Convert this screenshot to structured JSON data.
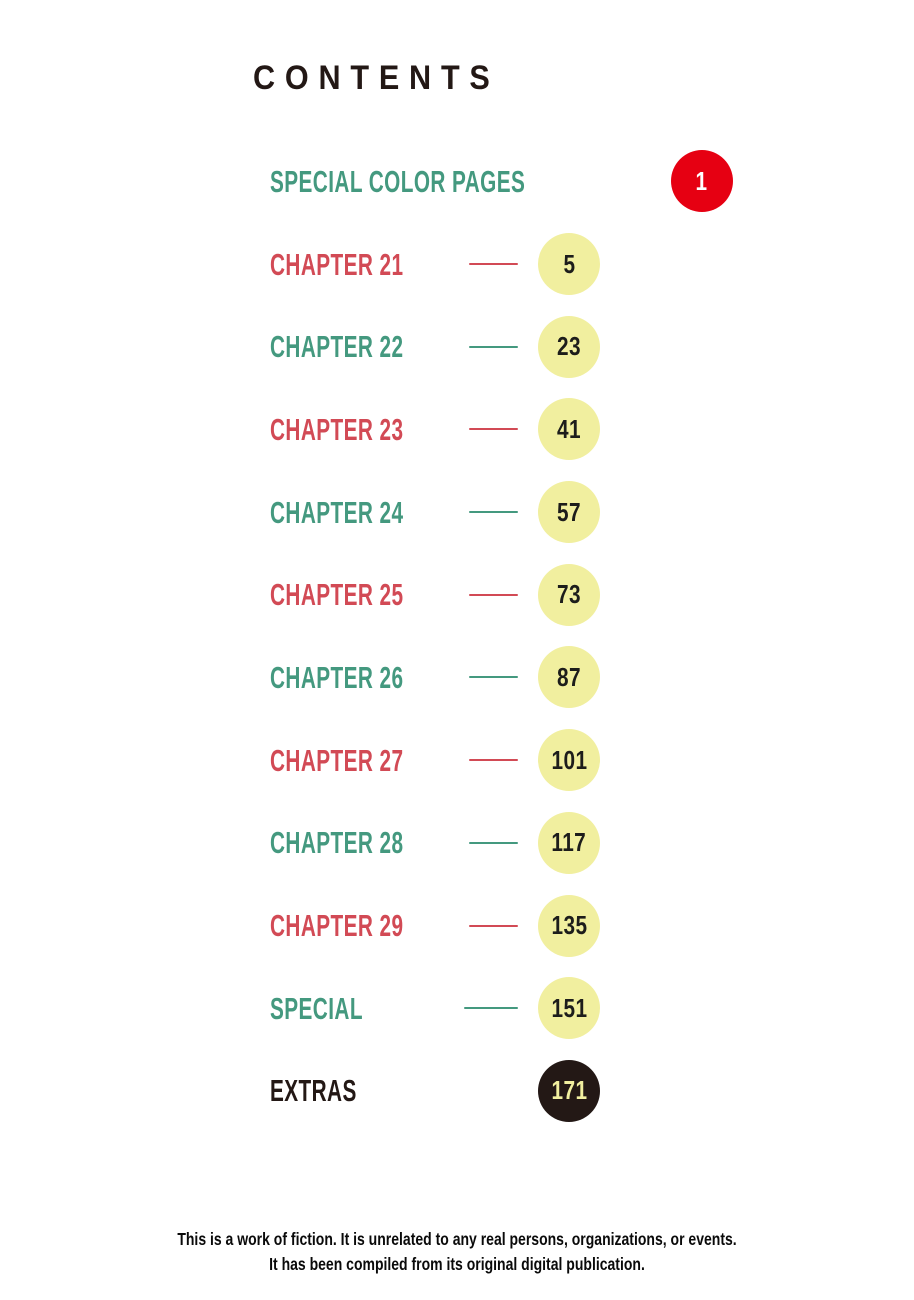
{
  "page": {
    "title": "CONTENTS",
    "footer_lines": [
      "This is a work of fiction. It is unrelated to any real persons, organizations, or events.",
      "It has been compiled from its original digital publication."
    ]
  },
  "toc": {
    "items": [
      {
        "label": "SPECIAL COLOR PAGES",
        "page": "1",
        "label_color": "teal",
        "circle": "red",
        "line": "none"
      },
      {
        "label": "CHAPTER 21",
        "page": "5",
        "label_color": "red",
        "circle": "yellow",
        "line": "full"
      },
      {
        "label": "CHAPTER 22",
        "page": "23",
        "label_color": "teal",
        "circle": "yellow",
        "line": "full"
      },
      {
        "label": "CHAPTER 23",
        "page": "41",
        "label_color": "red",
        "circle": "yellow",
        "line": "full"
      },
      {
        "label": "CHAPTER 24",
        "page": "57",
        "label_color": "teal",
        "circle": "yellow",
        "line": "full"
      },
      {
        "label": "CHAPTER 25",
        "page": "73",
        "label_color": "red",
        "circle": "yellow",
        "line": "full"
      },
      {
        "label": "CHAPTER 26",
        "page": "87",
        "label_color": "teal",
        "circle": "yellow",
        "line": "full"
      },
      {
        "label": "CHAPTER 27",
        "page": "101",
        "label_color": "red",
        "circle": "yellow",
        "line": "full"
      },
      {
        "label": "CHAPTER 28",
        "page": "117",
        "label_color": "teal",
        "circle": "yellow",
        "line": "full"
      },
      {
        "label": "CHAPTER 29",
        "page": "135",
        "label_color": "red",
        "circle": "yellow",
        "line": "full"
      },
      {
        "label": "SPECIAL",
        "page": "151",
        "label_color": "teal",
        "circle": "yellow",
        "line": "short"
      },
      {
        "label": "EXTRAS",
        "page": "171",
        "label_color": "black",
        "circle": "dark",
        "line": "none"
      }
    ]
  },
  "colors": {
    "background": "#ffffff",
    "ink": "#231815",
    "label_red": "#d24a55",
    "label_teal": "#44997f",
    "badge_red": "#e60012",
    "badge_yellow": "#f1ef9f",
    "badge_dark": "#231815",
    "number_ink": "#1d1d1b",
    "number_on_red": "#ffffff",
    "number_on_dark": "#f1ef9f",
    "footer_ink": "#0a0a0a"
  }
}
